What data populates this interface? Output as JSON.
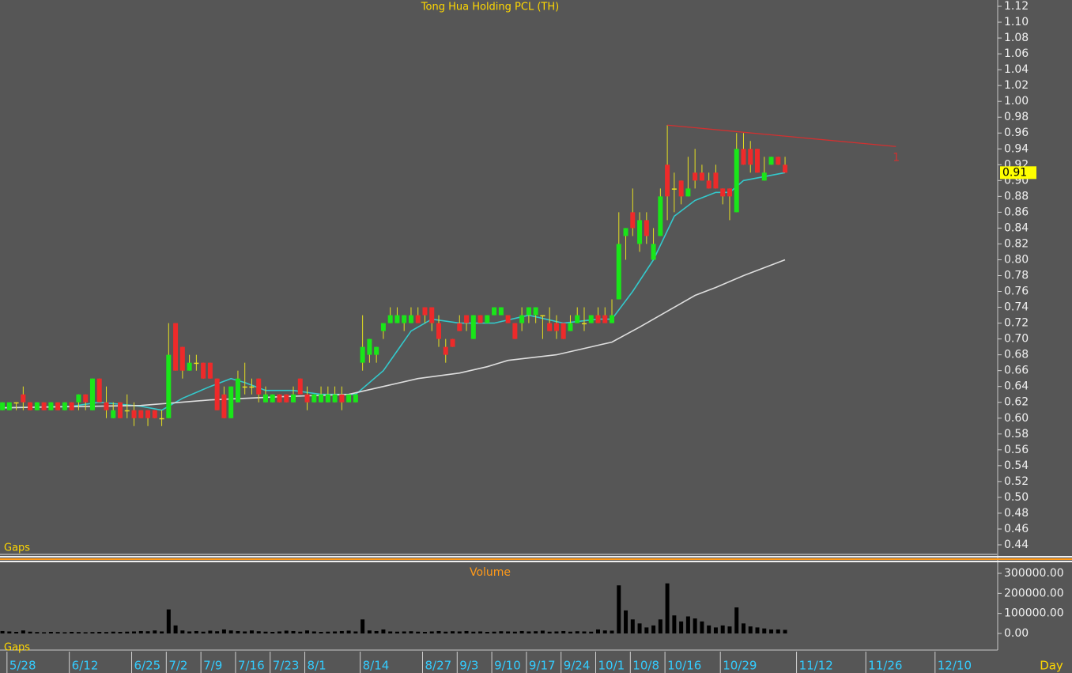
{
  "chart_data": [
    {
      "type": "candlestick",
      "title": "Tong Hua Holding PCL (TH)",
      "indicator_label": "Gaps",
      "up_color": "#19e619",
      "down_color": "#ee2a2a",
      "wick_color": "#e6e020",
      "xlim": [
        -0.35,
        143.7
      ],
      "ylim": [
        0.429,
        1.128
      ],
      "yticks": [
        0.44,
        0.46,
        0.48,
        {
          "value": 0.5,
          "label": "0.50"
        },
        0.52,
        0.54,
        0.56,
        0.58,
        {
          "value": 0.6,
          "label": "0.60"
        },
        0.62,
        0.64,
        0.66,
        0.68,
        {
          "value": 0.7,
          "label": "0.70"
        },
        0.72,
        0.74,
        0.76,
        0.78,
        {
          "value": 0.8,
          "label": "0.80"
        },
        0.82,
        0.84,
        0.86,
        0.88,
        {
          "value": 0.9,
          "label": "0.90"
        },
        0.92,
        0.94,
        0.96,
        0.98,
        {
          "value": 1.0,
          "label": "1.00"
        },
        1.02,
        1.04,
        1.06,
        1.08,
        {
          "value": 1.1,
          "label": "1.10"
        },
        1.12
      ],
      "xticks": [
        {
          "value": 1,
          "label": "5/28"
        },
        {
          "value": 10,
          "label": "6/12"
        },
        {
          "value": 19,
          "label": "6/25"
        },
        {
          "value": 24,
          "label": "7/2"
        },
        {
          "value": 29,
          "label": "7/9"
        },
        {
          "value": 34,
          "label": "7/16"
        },
        {
          "value": 39,
          "label": "7/23"
        },
        {
          "value": 44,
          "label": "8/1"
        },
        {
          "value": 52,
          "label": "8/14"
        },
        {
          "value": 61,
          "label": "8/27"
        },
        {
          "value": 66,
          "label": "9/3"
        },
        {
          "value": 71,
          "label": "9/10"
        },
        {
          "value": 76,
          "label": "9/17"
        },
        {
          "value": 81,
          "label": "9/24"
        },
        {
          "value": 86,
          "label": "10/1"
        },
        {
          "value": 91,
          "label": "10/8"
        },
        {
          "value": 96,
          "label": "10/16"
        },
        {
          "value": 104,
          "label": "10/29"
        },
        {
          "value": 115,
          "label": "11/12"
        },
        {
          "value": 125,
          "label": "11/26"
        },
        {
          "value": 135,
          "label": "12/10"
        }
      ],
      "last_price": 0.91,
      "ohlc": [
        [
          0.61,
          0.62,
          0.61,
          0.62
        ],
        [
          0.61,
          0.62,
          0.61,
          0.62
        ],
        [
          0.62,
          0.62,
          0.61,
          0.62
        ],
        [
          0.63,
          0.64,
          0.61,
          0.62
        ],
        [
          0.62,
          0.62,
          0.61,
          0.61
        ],
        [
          0.61,
          0.62,
          0.61,
          0.62
        ],
        [
          0.62,
          0.62,
          0.61,
          0.61
        ],
        [
          0.61,
          0.62,
          0.61,
          0.62
        ],
        [
          0.62,
          0.62,
          0.61,
          0.61
        ],
        [
          0.61,
          0.62,
          0.61,
          0.62
        ],
        [
          0.62,
          0.62,
          0.61,
          0.61
        ],
        [
          0.62,
          0.63,
          0.61,
          0.63
        ],
        [
          0.63,
          0.63,
          0.61,
          0.62
        ],
        [
          0.61,
          0.65,
          0.61,
          0.65
        ],
        [
          0.65,
          0.65,
          0.62,
          0.62
        ],
        [
          0.62,
          0.64,
          0.6,
          0.61
        ],
        [
          0.6,
          0.62,
          0.6,
          0.61
        ],
        [
          0.62,
          0.62,
          0.6,
          0.6
        ],
        [
          0.61,
          0.63,
          0.6,
          0.61
        ],
        [
          0.61,
          0.62,
          0.59,
          0.6
        ],
        [
          0.61,
          0.61,
          0.6,
          0.6
        ],
        [
          0.61,
          0.61,
          0.59,
          0.6
        ],
        [
          0.61,
          0.61,
          0.6,
          0.6
        ],
        [
          0.6,
          0.61,
          0.59,
          0.6
        ],
        [
          0.6,
          0.72,
          0.6,
          0.68
        ],
        [
          0.72,
          0.72,
          0.66,
          0.66
        ],
        [
          0.69,
          0.69,
          0.65,
          0.66
        ],
        [
          0.66,
          0.68,
          0.66,
          0.67
        ],
        [
          0.67,
          0.68,
          0.66,
          0.67
        ],
        [
          0.67,
          0.67,
          0.65,
          0.65
        ],
        [
          0.67,
          0.67,
          0.65,
          0.65
        ],
        [
          0.65,
          0.65,
          0.61,
          0.61
        ],
        [
          0.63,
          0.64,
          0.6,
          0.6
        ],
        [
          0.6,
          0.64,
          0.6,
          0.64
        ],
        [
          0.62,
          0.66,
          0.62,
          0.65
        ],
        [
          0.64,
          0.67,
          0.63,
          0.64
        ],
        [
          0.64,
          0.65,
          0.63,
          0.64
        ],
        [
          0.65,
          0.65,
          0.62,
          0.63
        ],
        [
          0.62,
          0.64,
          0.62,
          0.63
        ],
        [
          0.62,
          0.63,
          0.62,
          0.63
        ],
        [
          0.63,
          0.63,
          0.62,
          0.62
        ],
        [
          0.63,
          0.63,
          0.62,
          0.62
        ],
        [
          0.62,
          0.64,
          0.62,
          0.63
        ],
        [
          0.65,
          0.65,
          0.63,
          0.63
        ],
        [
          0.63,
          0.64,
          0.61,
          0.62
        ],
        [
          0.62,
          0.63,
          0.62,
          0.63
        ],
        [
          0.62,
          0.64,
          0.62,
          0.63
        ],
        [
          0.62,
          0.64,
          0.62,
          0.63
        ],
        [
          0.62,
          0.64,
          0.62,
          0.63
        ],
        [
          0.63,
          0.64,
          0.61,
          0.62
        ],
        [
          0.62,
          0.63,
          0.62,
          0.63
        ],
        [
          0.62,
          0.63,
          0.62,
          0.63
        ],
        [
          0.67,
          0.73,
          0.66,
          0.69
        ],
        [
          0.68,
          0.7,
          0.67,
          0.7
        ],
        [
          0.68,
          0.69,
          0.67,
          0.69
        ],
        [
          0.71,
          0.72,
          0.7,
          0.72
        ],
        [
          0.72,
          0.74,
          0.72,
          0.73
        ],
        [
          0.72,
          0.74,
          0.72,
          0.73
        ],
        [
          0.72,
          0.73,
          0.71,
          0.73
        ],
        [
          0.72,
          0.74,
          0.72,
          0.73
        ],
        [
          0.73,
          0.74,
          0.72,
          0.72
        ],
        [
          0.74,
          0.74,
          0.72,
          0.73
        ],
        [
          0.74,
          0.74,
          0.71,
          0.72
        ],
        [
          0.72,
          0.73,
          0.69,
          0.7
        ],
        [
          0.69,
          0.7,
          0.67,
          0.68
        ],
        [
          0.7,
          0.7,
          0.69,
          0.69
        ],
        [
          0.72,
          0.73,
          0.71,
          0.71
        ],
        [
          0.73,
          0.73,
          0.71,
          0.72
        ],
        [
          0.7,
          0.73,
          0.7,
          0.73
        ],
        [
          0.73,
          0.73,
          0.72,
          0.72
        ],
        [
          0.72,
          0.73,
          0.72,
          0.73
        ],
        [
          0.73,
          0.74,
          0.73,
          0.74
        ],
        [
          0.73,
          0.74,
          0.73,
          0.74
        ],
        [
          0.73,
          0.73,
          0.72,
          0.72
        ],
        [
          0.72,
          0.72,
          0.7,
          0.7
        ],
        [
          0.72,
          0.74,
          0.71,
          0.73
        ],
        [
          0.73,
          0.74,
          0.72,
          0.74
        ],
        [
          0.73,
          0.74,
          0.72,
          0.74
        ],
        [
          0.73,
          0.73,
          0.7,
          0.73
        ],
        [
          0.72,
          0.74,
          0.71,
          0.71
        ],
        [
          0.72,
          0.73,
          0.7,
          0.71
        ],
        [
          0.72,
          0.72,
          0.7,
          0.7
        ],
        [
          0.71,
          0.73,
          0.71,
          0.72
        ],
        [
          0.72,
          0.74,
          0.72,
          0.73
        ],
        [
          0.72,
          0.74,
          0.71,
          0.72
        ],
        [
          0.72,
          0.73,
          0.72,
          0.73
        ],
        [
          0.73,
          0.74,
          0.72,
          0.72
        ],
        [
          0.73,
          0.74,
          0.72,
          0.72
        ],
        [
          0.72,
          0.75,
          0.72,
          0.73
        ],
        [
          0.75,
          0.86,
          0.75,
          0.82
        ],
        [
          0.83,
          0.84,
          0.8,
          0.84
        ],
        [
          0.86,
          0.89,
          0.83,
          0.84
        ],
        [
          0.82,
          0.86,
          0.81,
          0.85
        ],
        [
          0.85,
          0.86,
          0.82,
          0.83
        ],
        [
          0.8,
          0.84,
          0.8,
          0.82
        ],
        [
          0.83,
          0.89,
          0.83,
          0.88
        ],
        [
          0.92,
          0.97,
          0.85,
          0.88
        ],
        [
          0.89,
          0.91,
          0.86,
          0.89
        ],
        [
          0.9,
          0.9,
          0.87,
          0.88
        ],
        [
          0.88,
          0.93,
          0.88,
          0.89
        ],
        [
          0.91,
          0.94,
          0.89,
          0.9
        ],
        [
          0.91,
          0.92,
          0.9,
          0.9
        ],
        [
          0.9,
          0.91,
          0.89,
          0.89
        ],
        [
          0.91,
          0.92,
          0.89,
          0.89
        ],
        [
          0.89,
          0.89,
          0.87,
          0.88
        ],
        [
          0.89,
          0.89,
          0.85,
          0.88
        ],
        [
          0.86,
          0.96,
          0.86,
          0.94
        ],
        [
          0.94,
          0.96,
          0.92,
          0.92
        ],
        [
          0.94,
          0.95,
          0.91,
          0.92
        ],
        [
          0.94,
          0.94,
          0.91,
          0.91
        ],
        [
          0.9,
          0.93,
          0.9,
          0.91
        ],
        [
          0.92,
          0.93,
          0.92,
          0.93
        ],
        [
          0.93,
          0.93,
          0.92,
          0.92
        ],
        [
          0.92,
          0.93,
          0.91,
          0.91
        ]
      ],
      "moving_averages": [
        {
          "color": "#33c9cc",
          "x": [
            0,
            10,
            14,
            20,
            23,
            26,
            30,
            33,
            35,
            38,
            42,
            46,
            51,
            55,
            59,
            62,
            66,
            71,
            76,
            81,
            86,
            88,
            91,
            94,
            97,
            100,
            103,
            105,
            107,
            110,
            113
          ],
          "values": [
            0.613,
            0.615,
            0.62,
            0.615,
            0.61,
            0.625,
            0.64,
            0.65,
            0.645,
            0.635,
            0.635,
            0.63,
            0.63,
            0.66,
            0.71,
            0.725,
            0.72,
            0.72,
            0.73,
            0.72,
            0.725,
            0.725,
            0.76,
            0.8,
            0.855,
            0.875,
            0.885,
            0.885,
            0.9,
            0.905,
            0.91
          ]
        },
        {
          "color": "#dedede",
          "x": [
            0,
            20,
            30,
            40,
            50,
            55,
            60,
            66,
            70,
            73,
            80,
            85,
            88,
            92,
            96,
            100,
            103,
            107,
            113
          ],
          "values": [
            0.613,
            0.616,
            0.623,
            0.627,
            0.63,
            0.64,
            0.65,
            0.657,
            0.665,
            0.673,
            0.68,
            0.69,
            0.696,
            0.715,
            0.735,
            0.755,
            0.765,
            0.78,
            0.8
          ]
        }
      ],
      "trendline": {
        "color": "#d23030",
        "label": "1",
        "x": [
          96,
          129
        ],
        "values": [
          0.97,
          0.943
        ]
      }
    },
    {
      "type": "bar",
      "title": "Volume",
      "indicator_label": "Gaps",
      "x_label": "Day",
      "color": "#000000",
      "ylim": [
        -75000,
        351300
      ],
      "yticks": [
        {
          "value": 0,
          "label": "0.00"
        },
        {
          "value": 100000,
          "label": "100000.00"
        },
        {
          "value": 200000,
          "label": "200000.00"
        },
        {
          "value": 300000,
          "label": "300000.00"
        }
      ],
      "values": [
        12000,
        10000,
        8000,
        15000,
        9000,
        7000,
        6000,
        8000,
        7000,
        6000,
        8000,
        7000,
        6000,
        7000,
        8000,
        7000,
        9000,
        8000,
        9000,
        10000,
        12000,
        11000,
        15000,
        10000,
        120000,
        40000,
        15000,
        10000,
        12000,
        9000,
        14000,
        11000,
        20000,
        15000,
        12000,
        10000,
        15000,
        11000,
        9000,
        8000,
        10000,
        14000,
        12000,
        9000,
        15000,
        10000,
        8000,
        9000,
        10000,
        12000,
        14000,
        10000,
        70000,
        15000,
        12000,
        20000,
        10000,
        9000,
        10000,
        11000,
        9000,
        8000,
        10000,
        12000,
        9000,
        11000,
        10000,
        12000,
        9000,
        10000,
        8000,
        9000,
        11000,
        10000,
        9000,
        12000,
        10000,
        11000,
        14000,
        9000,
        10000,
        12000,
        9000,
        11000,
        10000,
        9000,
        20000,
        15000,
        14000,
        240000,
        115000,
        70000,
        50000,
        30000,
        40000,
        70000,
        250000,
        90000,
        60000,
        85000,
        75000,
        60000,
        40000,
        30000,
        40000,
        35000,
        130000,
        50000,
        35000,
        30000,
        25000,
        20000,
        20000,
        18000
      ]
    }
  ]
}
